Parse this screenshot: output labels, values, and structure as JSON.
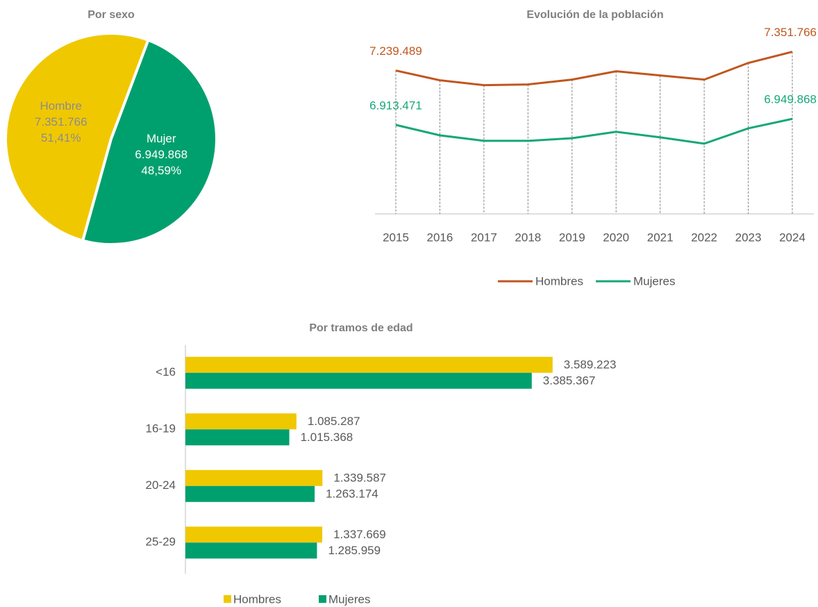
{
  "chart_data": [
    {
      "type": "pie",
      "title": "Por sexo",
      "categories": [
        "Hombre",
        "Mujer"
      ],
      "values": [
        7351766,
        6949868
      ],
      "value_labels": [
        "7.351.766",
        "6.949.868"
      ],
      "percentages": [
        51.41,
        48.59
      ],
      "percentage_labels": [
        "51,41%",
        "48,59%"
      ],
      "colors": [
        "#f0c800",
        "#00a06e"
      ],
      "label_colors": [
        "#8c8c8c",
        "#ffffff"
      ]
    },
    {
      "type": "line",
      "title": "Evolución de la población",
      "x": [
        "2015",
        "2016",
        "2017",
        "2018",
        "2019",
        "2020",
        "2021",
        "2022",
        "2023",
        "2024"
      ],
      "ylim": [
        6380000,
        7400000
      ],
      "series": [
        {
          "name": "Hombres",
          "color": "#c0561f",
          "values": [
            7239489,
            7181000,
            7152000,
            7156000,
            7185000,
            7235000,
            7210000,
            7185000,
            7285000,
            7351766
          ],
          "value_labels": [
            "7.239.489",
            null,
            null,
            null,
            null,
            null,
            null,
            null,
            null,
            "7.351.766"
          ]
        },
        {
          "name": "Mujeres",
          "color": "#16a77a",
          "values": [
            6913471,
            6851000,
            6818000,
            6818000,
            6834000,
            6872000,
            6839000,
            6801000,
            6893000,
            6949868
          ],
          "value_labels": [
            "6.913.471",
            null,
            null,
            null,
            null,
            null,
            null,
            null,
            null,
            "6.949.868"
          ]
        }
      ],
      "legend": "bottom"
    },
    {
      "type": "hbar",
      "title": "Por tramos de edad",
      "categories": [
        "<16",
        "16-19",
        "20-24",
        "25-29"
      ],
      "xlim": [
        0,
        6000000
      ],
      "series": [
        {
          "name": "Hombres",
          "color": "#f0c800",
          "values": [
            3589223,
            1085287,
            1339587,
            1337669
          ],
          "value_labels": [
            "3.589.223",
            "1.085.287",
            "1.339.587",
            "1.337.669"
          ]
        },
        {
          "name": "Mujeres",
          "color": "#00a06e",
          "values": [
            3385367,
            1015368,
            1263174,
            1285959
          ],
          "value_labels": [
            "3.385.367",
            "1.015.368",
            "1.263.174",
            "1.285.959"
          ]
        }
      ],
      "legend": "bottom"
    }
  ]
}
